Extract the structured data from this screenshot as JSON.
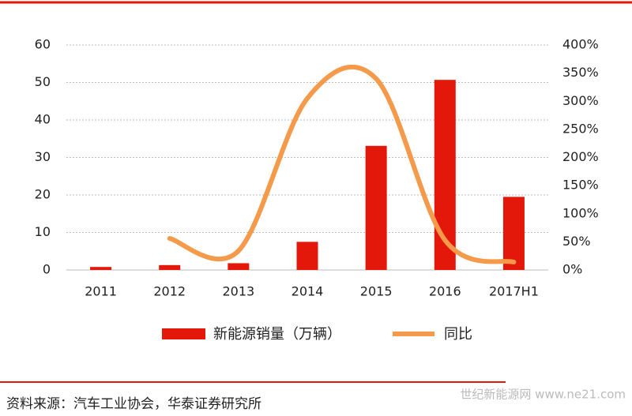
{
  "chart_data": {
    "type": "bar_line",
    "categories": [
      "2011",
      "2012",
      "2013",
      "2014",
      "2015",
      "2016",
      "2017H1"
    ],
    "series": [
      {
        "name": "新能源销量（万辆）",
        "color": "#e3170a",
        "type": "bar",
        "values": [
          0.8,
          1.3,
          1.8,
          7.5,
          33.1,
          50.7,
          19.5
        ]
      },
      {
        "name": "同比",
        "color": "#f59a4a",
        "type": "line",
        "axis": "y2",
        "values": [
          null,
          56,
          34,
          305,
          340,
          53,
          14
        ]
      }
    ],
    "ylim": [
      0,
      60
    ],
    "yticks": [
      0,
      10,
      20,
      30,
      40,
      50,
      60
    ],
    "y2lim": [
      0,
      400
    ],
    "y2ticks": [
      {
        "value": 0,
        "label": "0%"
      },
      {
        "value": 50,
        "label": "50%"
      },
      {
        "value": 100,
        "label": "100%"
      },
      {
        "value": 150,
        "label": "150%"
      },
      {
        "value": 200,
        "label": "200%"
      },
      {
        "value": 250,
        "label": "250%"
      },
      {
        "value": 300,
        "label": "300%"
      },
      {
        "value": 350,
        "label": "350%"
      },
      {
        "value": 400,
        "label": "400%"
      }
    ],
    "grid": true,
    "source": "资料来源：汽车工业协会，华泰证券研究所",
    "watermark": "世纪新能源网 www.ne21.com"
  }
}
